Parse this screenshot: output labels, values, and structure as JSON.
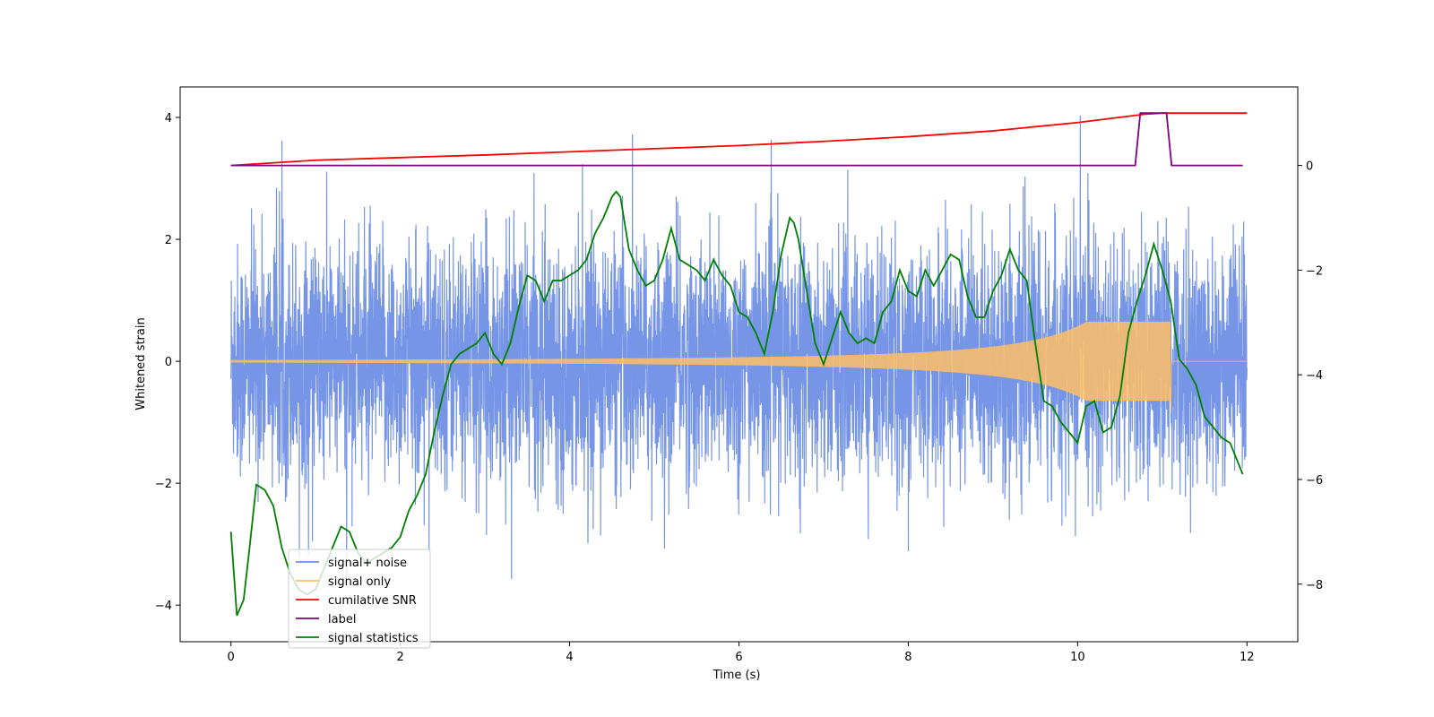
{
  "chart_data": {
    "type": "line",
    "title": "",
    "xlabel": "Time (s)",
    "ylabel": "Whitened strain",
    "y2label": "",
    "xlim": [
      -0.6,
      12.6
    ],
    "ylim": [
      -4.6,
      4.5
    ],
    "y2lim": [
      -9.1,
      1.5
    ],
    "x_ticks": [
      0,
      2,
      4,
      6,
      8,
      10,
      12
    ],
    "y_ticks": [
      -4,
      -2,
      0,
      2,
      4
    ],
    "y2_ticks": [
      -8,
      -6,
      -4,
      -2,
      0
    ],
    "grid": false,
    "legend_position": "lower-left",
    "legend": [
      "signal+ noise",
      "signal only",
      "cumilative SNR",
      "label",
      "signal statistics"
    ],
    "colors": {
      "signal_noise": "#6f8fe6",
      "signal_only": "#ffbf66",
      "cumulative_snr": "#ff0000",
      "label": "#800080",
      "signal_statistics": "#008000"
    },
    "series": [
      {
        "name": "signal+ noise",
        "axis": "left",
        "description_values": {
          "x_range": [
            0,
            12
          ],
          "typical_amplitude": 1.5,
          "peak_max": 4.1,
          "peak_min": -4.15
        }
      },
      {
        "name": "signal only",
        "axis": "left",
        "chirp": {
          "x_start": 0,
          "x_merge": 11.1,
          "x_end": 12,
          "amp_start": 0.02,
          "amp_peak": 0.65,
          "amp_peak_neg": -0.85
        }
      },
      {
        "name": "cumilative SNR",
        "axis": "right",
        "x": [
          0,
          1,
          2,
          3,
          4,
          5,
          6,
          7,
          8,
          9,
          10,
          10.5,
          10.8,
          11.0,
          11.1,
          12.0
        ],
        "y": [
          0,
          0.1,
          0.15,
          0.2,
          0.26,
          0.32,
          0.38,
          0.46,
          0.55,
          0.66,
          0.82,
          0.92,
          0.98,
          1.0,
          1.0,
          1.0
        ]
      },
      {
        "name": "label",
        "axis": "right",
        "x": [
          0,
          10.68,
          10.74,
          11.05,
          11.11,
          11.95
        ],
        "y": [
          0,
          0,
          1,
          1,
          0,
          0
        ]
      },
      {
        "name": "signal statistics",
        "axis": "right",
        "x": [
          0,
          0.07,
          0.15,
          0.22,
          0.3,
          0.4,
          0.5,
          0.6,
          0.7,
          0.8,
          0.9,
          1.0,
          1.1,
          1.2,
          1.3,
          1.4,
          1.5,
          1.6,
          1.7,
          1.8,
          1.9,
          2.0,
          2.1,
          2.2,
          2.3,
          2.4,
          2.5,
          2.6,
          2.7,
          2.8,
          2.9,
          3.0,
          3.1,
          3.2,
          3.3,
          3.4,
          3.5,
          3.6,
          3.7,
          3.8,
          3.9,
          4.0,
          4.1,
          4.2,
          4.3,
          4.4,
          4.5,
          4.55,
          4.6,
          4.7,
          4.8,
          4.9,
          5.0,
          5.1,
          5.2,
          5.3,
          5.4,
          5.5,
          5.6,
          5.7,
          5.8,
          5.9,
          6.0,
          6.1,
          6.2,
          6.3,
          6.4,
          6.5,
          6.6,
          6.65,
          6.7,
          6.8,
          6.9,
          7.0,
          7.1,
          7.2,
          7.3,
          7.4,
          7.5,
          7.6,
          7.7,
          7.8,
          7.9,
          8.0,
          8.1,
          8.2,
          8.3,
          8.4,
          8.5,
          8.6,
          8.7,
          8.8,
          8.9,
          9.0,
          9.1,
          9.2,
          9.3,
          9.4,
          9.5,
          9.6,
          9.7,
          9.8,
          9.9,
          10.0,
          10.1,
          10.2,
          10.3,
          10.4,
          10.5,
          10.6,
          10.7,
          10.8,
          10.9,
          11.0,
          11.1,
          11.2,
          11.3,
          11.4,
          11.5,
          11.6,
          11.7,
          11.8,
          11.9,
          11.95
        ],
        "y": [
          -7.0,
          -8.6,
          -8.3,
          -7.3,
          -6.1,
          -6.2,
          -6.5,
          -7.3,
          -7.8,
          -8.1,
          -8.2,
          -8.1,
          -7.7,
          -7.3,
          -6.9,
          -7.0,
          -7.4,
          -7.6,
          -7.5,
          -7.4,
          -7.3,
          -7.1,
          -6.6,
          -6.3,
          -5.9,
          -5.1,
          -4.4,
          -3.8,
          -3.6,
          -3.5,
          -3.4,
          -3.2,
          -3.6,
          -3.8,
          -3.4,
          -2.7,
          -2.1,
          -2.2,
          -2.6,
          -2.2,
          -2.2,
          -2.1,
          -2.0,
          -1.8,
          -1.3,
          -1.0,
          -0.6,
          -0.5,
          -0.6,
          -1.6,
          -2.0,
          -2.3,
          -2.2,
          -1.8,
          -1.2,
          -1.8,
          -1.9,
          -2.0,
          -2.2,
          -1.8,
          -2.1,
          -2.3,
          -2.8,
          -2.9,
          -3.2,
          -3.6,
          -2.8,
          -1.7,
          -1.0,
          -1.1,
          -1.4,
          -2.4,
          -3.4,
          -3.8,
          -3.3,
          -2.8,
          -3.2,
          -3.4,
          -3.3,
          -3.4,
          -2.8,
          -2.6,
          -2.0,
          -2.4,
          -2.5,
          -2.0,
          -2.3,
          -2.0,
          -1.7,
          -1.8,
          -2.5,
          -2.9,
          -2.9,
          -2.4,
          -2.1,
          -1.6,
          -2.0,
          -2.2,
          -3.4,
          -4.5,
          -4.6,
          -4.9,
          -5.1,
          -5.3,
          -4.6,
          -4.5,
          -5.1,
          -5.0,
          -4.4,
          -3.2,
          -2.6,
          -2.1,
          -1.5,
          -2.0,
          -2.6,
          -3.7,
          -3.9,
          -4.2,
          -4.8,
          -5.0,
          -5.2,
          -5.3,
          -5.7,
          -5.9
        ]
      }
    ]
  }
}
